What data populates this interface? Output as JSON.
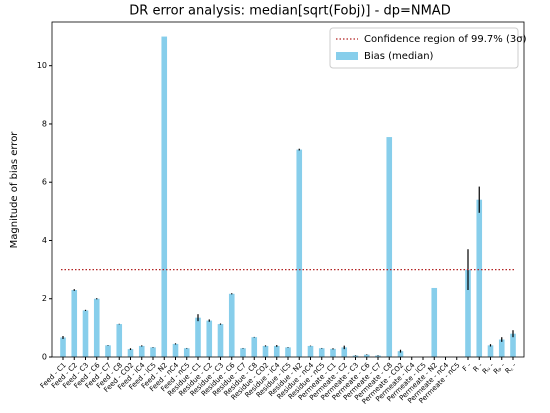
{
  "chart_data": {
    "type": "bar",
    "title": "DR error analysis: median[sqrt(Fobj)] - dp=NMAD",
    "y_label": "Magnitude of bias error",
    "categories": [
      "Feed - C1",
      "Feed - C2",
      "Feed - C3",
      "Feed - C6",
      "Feed - C7",
      "Feed - C8",
      "Feed - CO2",
      "Feed - iC4",
      "Feed - iC5",
      "Feed - N2",
      "Feed - nC4",
      "Feed - nC5",
      "Residue - C1",
      "Residue - C2",
      "Residue - C3",
      "Residue - C6",
      "Residue - C7",
      "Residue - C8",
      "Residue - CO2",
      "Residue - iC4",
      "Residue - iC5",
      "Residue - N2",
      "Residue - nC4",
      "Residue - nC5",
      "Permeate - C1",
      "Permeate - C2",
      "Permeate - C3",
      "Permeate - C6",
      "Permeate - C7",
      "Permeate - C8",
      "Permeate - CO2",
      "Permeate - iC4",
      "Permeate - iC5",
      "Permeate - N2",
      "Permeate - nC4",
      "Permeate - nC5",
      "F -",
      "R -",
      "Rᵤ -",
      "Rₚ -",
      "R꜀ -"
    ],
    "series": [
      {
        "name": "Bias (median)",
        "color": "#87ceeb",
        "values": [
          0.67,
          2.3,
          1.6,
          2.0,
          0.4,
          1.13,
          0.27,
          0.38,
          0.33,
          11.0,
          0.45,
          0.3,
          1.35,
          1.25,
          1.13,
          2.17,
          0.3,
          0.68,
          0.38,
          0.38,
          0.33,
          7.12,
          0.38,
          0.3,
          0.28,
          0.33,
          0.05,
          0.08,
          0.05,
          7.55,
          0.2,
          0,
          0,
          2.37,
          0,
          0,
          3.0,
          5.4,
          0.4,
          0.6,
          0.8
        ],
        "errors": [
          0.05,
          0.03,
          0.02,
          0.02,
          0.01,
          0.01,
          0.03,
          0.02,
          0.01,
          0,
          0.02,
          0.01,
          0.12,
          0.04,
          0.02,
          0.02,
          0.01,
          0.01,
          0.02,
          0.03,
          0.01,
          0.03,
          0.01,
          0.01,
          0.02,
          0.06,
          0.01,
          0.01,
          0.01,
          0,
          0.05,
          0,
          0,
          0,
          0,
          0,
          0.7,
          0.45,
          0.04,
          0.08,
          0.12
        ]
      }
    ],
    "hline": {
      "name": "Confidence region of 99.7% (3σ)",
      "value": 3,
      "color": "#b22222"
    },
    "error_color": "#000000",
    "ylim": [
      0,
      11.5
    ],
    "yticks": [
      0,
      2,
      4,
      6,
      8,
      10
    ],
    "legend": "upper right"
  }
}
